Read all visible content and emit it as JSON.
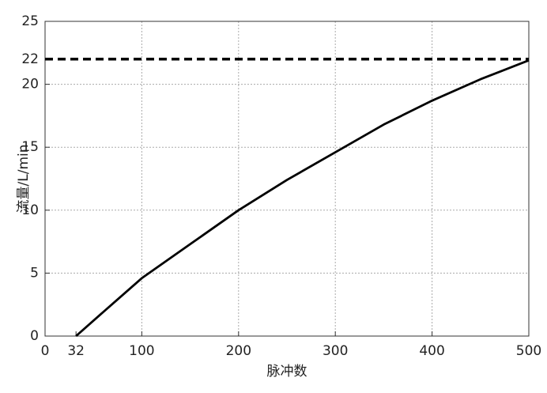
{
  "chart_data": {
    "type": "line",
    "xlabel": "脉冲数",
    "ylabel": "流量/L/min",
    "xlim": [
      0,
      500
    ],
    "xticks": [
      0,
      32,
      100,
      200,
      300,
      400,
      500
    ],
    "ylim": [
      0,
      25
    ],
    "yticks": [
      0,
      5,
      10,
      15,
      20,
      22,
      25
    ],
    "xgrid": [
      100,
      200,
      300,
      400
    ],
    "ygrid": [
      5,
      10,
      15,
      20
    ],
    "series": [
      {
        "color": "#000000",
        "dash": false,
        "x": [
          32,
          60,
          100,
          150,
          200,
          250,
          300,
          350,
          400,
          450,
          500
        ],
        "values": [
          0,
          1.9,
          4.6,
          7.3,
          10.0,
          12.4,
          14.6,
          16.8,
          18.7,
          20.4,
          21.9
        ]
      },
      {
        "color": "#000000",
        "dash": true,
        "x": [
          0,
          500
        ],
        "values": [
          22,
          22
        ]
      }
    ]
  }
}
